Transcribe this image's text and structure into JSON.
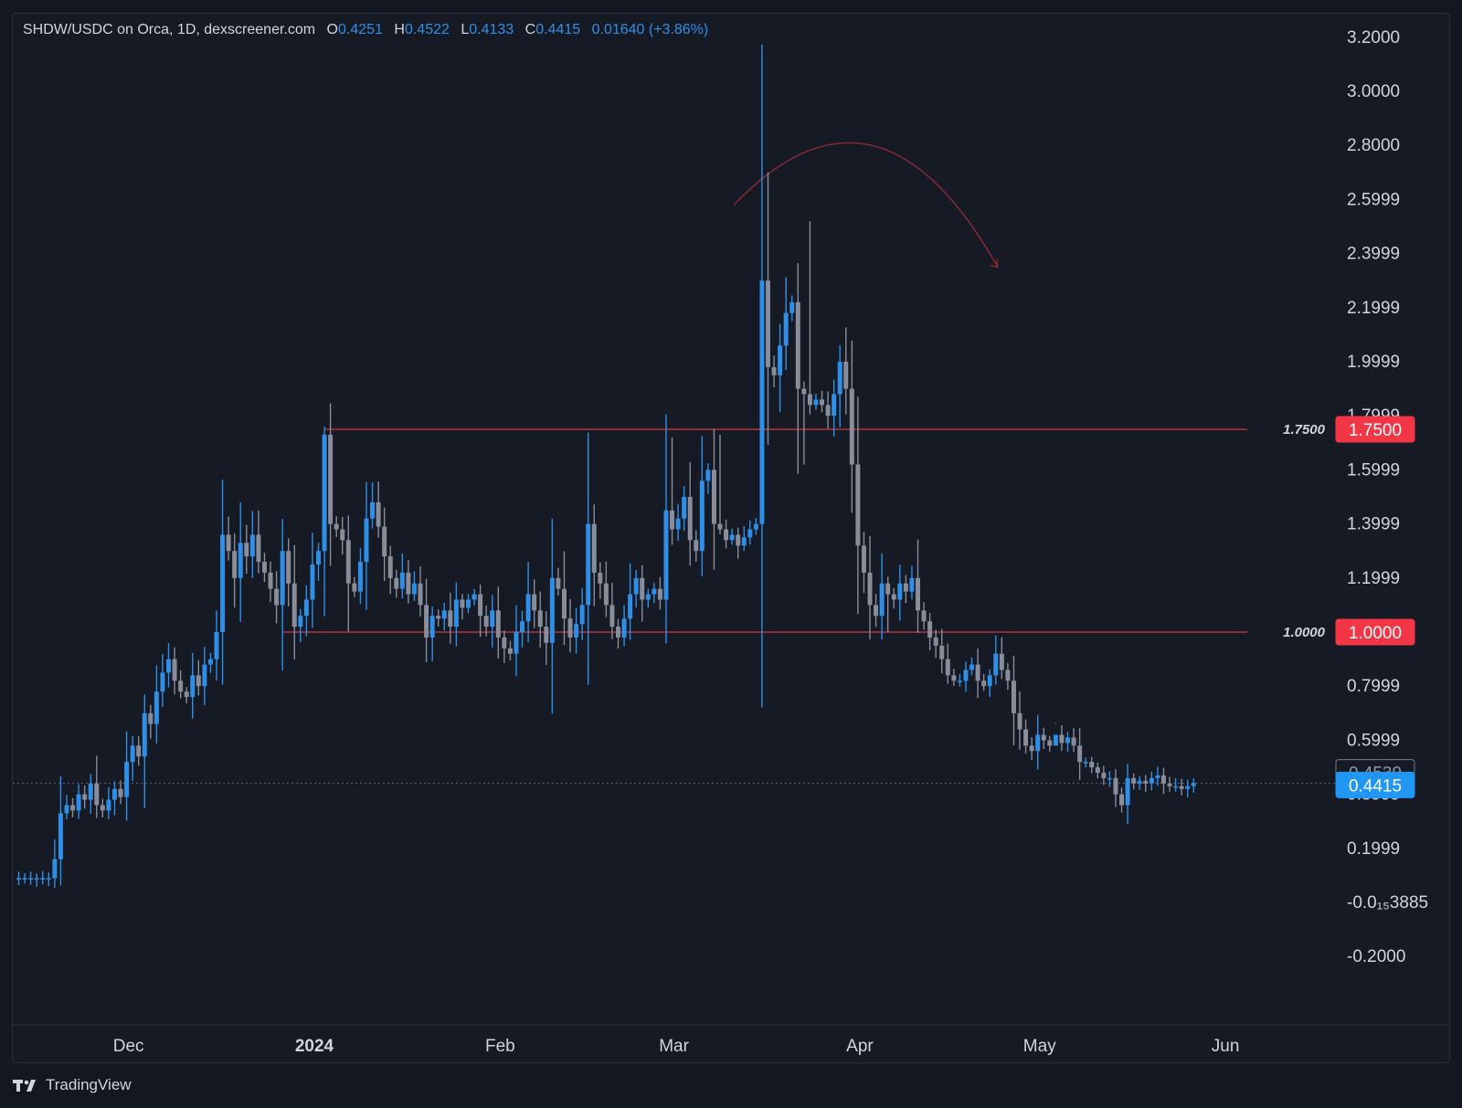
{
  "legend": {
    "symbol": "SHDW/USDC on Orca, 1D, dexscreener.com",
    "o_label": "O",
    "o_value": "0.4251",
    "h_label": "H",
    "h_value": "0.4522",
    "l_label": "L",
    "l_value": "0.4133",
    "c_label": "C",
    "c_value": "0.4415",
    "change": "0.01640 (+3.86%)"
  },
  "footer": {
    "brand": "TradingView"
  },
  "colors": {
    "background": "#161a25",
    "up": "#2f8fe6",
    "down": "#888d99",
    "level_line": "#d03a44",
    "level_tag": "#f23645",
    "last_price_tag": "#2196f3",
    "arrow": "#8a2b34"
  },
  "icons": [
    "tradingview-logo-icon"
  ],
  "chart_data": {
    "type": "candlestick",
    "title": "SHDW/USDC on Orca, 1D, dexscreener.com",
    "xlabel": "",
    "ylabel": "",
    "x_ticks": [
      "Dec",
      "2024",
      "Feb",
      "Mar",
      "Apr",
      "May",
      "Jun"
    ],
    "y_ticks": [
      "3.2000",
      "3.0000",
      "2.8000",
      "2.5999",
      "2.3999",
      "2.1999",
      "1.9999",
      "1.7999",
      "1.5999",
      "1.3999",
      "1.1999",
      "0.7999",
      "0.5999",
      "0.3999",
      "0.1999",
      "-0.0₁₅3885",
      "-0.2000"
    ],
    "ylim": [
      -0.2,
      3.2
    ],
    "x_range": [
      "2023-11-12",
      "2024-06-18"
    ],
    "grid": false,
    "levels": [
      {
        "value": 1.75,
        "label": "1.7500",
        "tag": "1.7500"
      },
      {
        "value": 1.0,
        "label": "1.0000",
        "tag": "1.0000"
      }
    ],
    "price_tags": [
      {
        "value": 0.4539,
        "label": "0.4539",
        "style": "outline"
      },
      {
        "value": 0.4415,
        "label": "0.4415",
        "style": "last"
      }
    ],
    "annotation": {
      "type": "arc-arrow",
      "from": [
        "2024-03-11",
        2.58
      ],
      "apex": [
        "2024-04-03",
        2.8
      ],
      "to": [
        "2024-04-24",
        2.35
      ]
    },
    "closes": [
      0.09,
      0.09,
      0.09,
      0.09,
      0.09,
      0.09,
      0.16,
      0.33,
      0.36,
      0.34,
      0.4,
      0.38,
      0.44,
      0.36,
      0.34,
      0.38,
      0.42,
      0.39,
      0.52,
      0.58,
      0.54,
      0.7,
      0.66,
      0.78,
      0.85,
      0.9,
      0.82,
      0.78,
      0.76,
      0.84,
      0.8,
      0.88,
      0.9,
      1.0,
      1.36,
      1.3,
      1.2,
      1.33,
      1.28,
      1.36,
      1.26,
      1.22,
      1.16,
      1.1,
      1.3,
      1.18,
      1.02,
      1.06,
      1.12,
      1.25,
      1.3,
      1.73,
      1.4,
      1.38,
      1.34,
      1.18,
      1.15,
      1.26,
      1.42,
      1.48,
      1.39,
      1.28,
      1.2,
      1.16,
      1.22,
      1.14,
      1.18,
      1.1,
      0.98,
      1.06,
      1.05,
      1.08,
      1.02,
      1.12,
      1.09,
      1.12,
      1.14,
      1.06,
      1.02,
      1.08,
      0.98,
      0.94,
      0.92,
      1.0,
      1.04,
      1.14,
      1.08,
      1.02,
      0.96,
      1.2,
      1.16,
      1.05,
      0.98,
      1.03,
      1.1,
      1.4,
      1.22,
      1.18,
      1.1,
      1.02,
      0.98,
      1.05,
      1.14,
      1.2,
      1.12,
      1.14,
      1.16,
      1.12,
      1.45,
      1.38,
      1.42,
      1.5,
      1.34,
      1.3,
      1.56,
      1.6,
      1.4,
      1.38,
      1.34,
      1.36,
      1.32,
      1.35,
      1.38,
      1.4,
      2.3,
      1.98,
      1.95,
      2.06,
      2.18,
      2.22,
      1.9,
      1.88,
      1.84,
      1.86,
      1.84,
      1.8,
      1.88,
      2.0,
      1.9,
      1.62,
      1.32,
      1.22,
      1.1,
      1.06,
      1.18,
      1.14,
      1.12,
      1.18,
      1.15,
      1.2,
      1.08,
      1.04,
      0.98,
      0.95,
      0.9,
      0.84,
      0.82,
      0.82,
      0.86,
      0.88,
      0.82,
      0.8,
      0.84,
      0.92,
      0.86,
      0.82,
      0.7,
      0.64,
      0.58,
      0.56,
      0.62,
      0.6,
      0.58,
      0.62,
      0.59,
      0.61,
      0.58,
      0.52,
      0.52,
      0.5,
      0.48,
      0.46,
      0.46,
      0.4,
      0.36,
      0.46,
      0.44,
      0.45,
      0.44,
      0.46,
      0.47,
      0.44,
      0.43,
      0.43,
      0.42,
      0.43,
      0.4415
    ]
  }
}
